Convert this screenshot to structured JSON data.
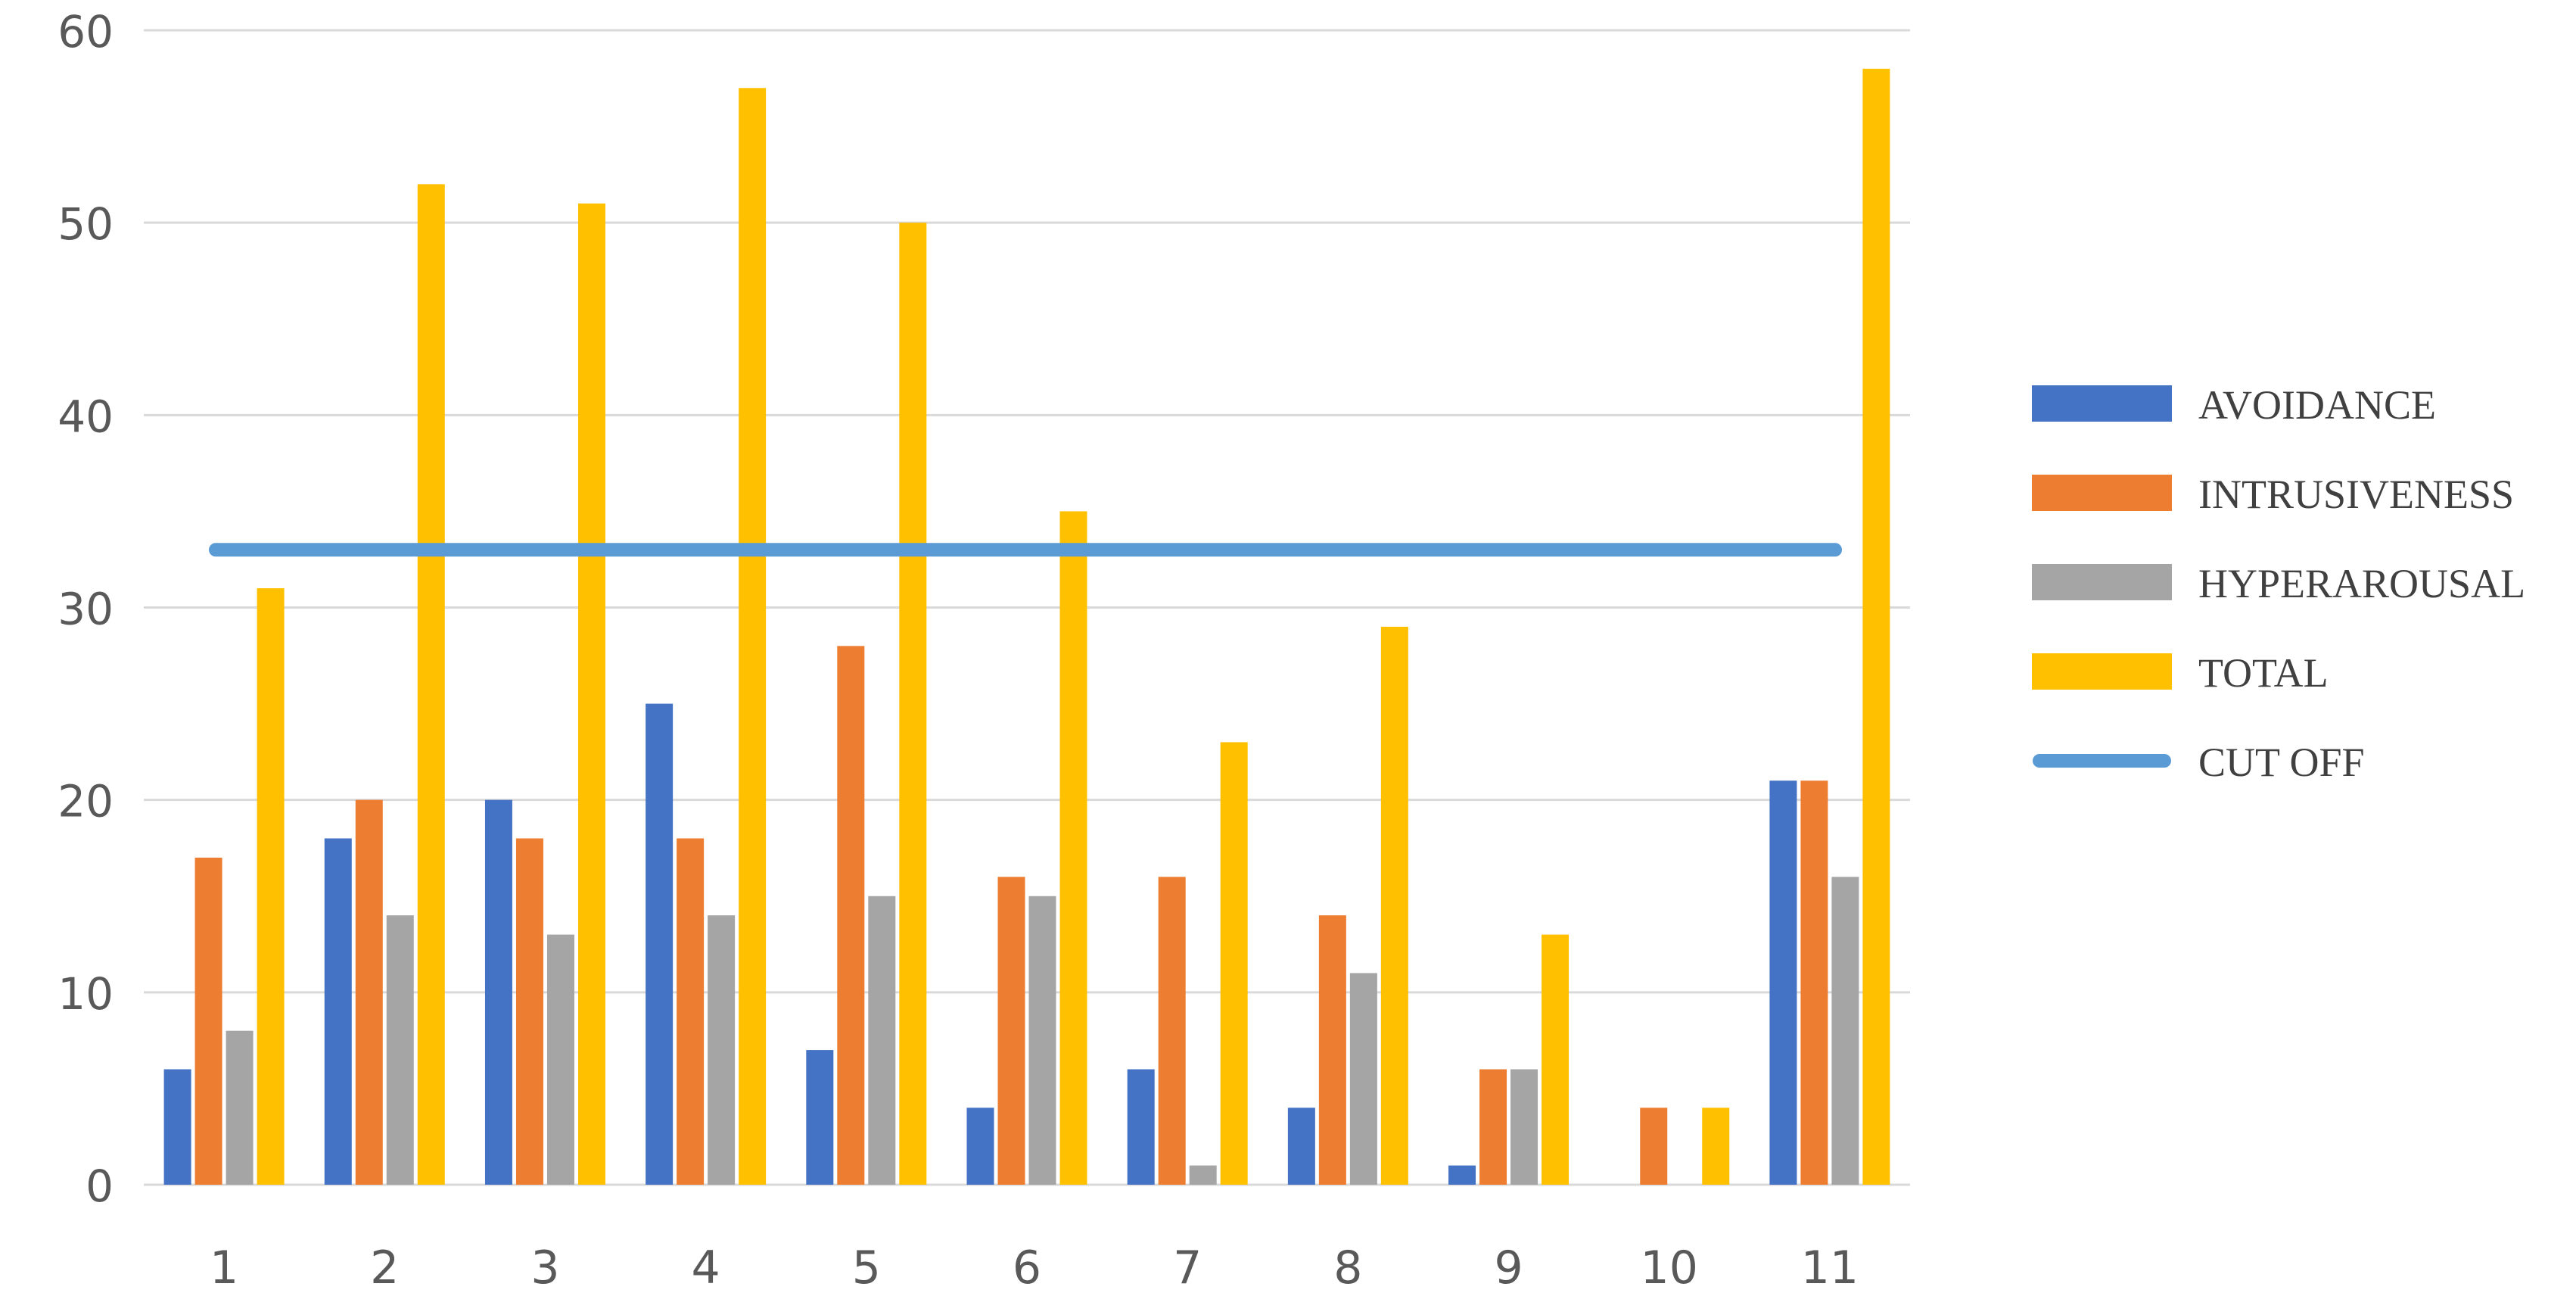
{
  "chart_data": {
    "type": "bar",
    "categories": [
      "1",
      "2",
      "3",
      "4",
      "5",
      "6",
      "7",
      "8",
      "9",
      "10",
      "11"
    ],
    "series": [
      {
        "name": "AVOIDANCE",
        "color": "#4472C4",
        "values": [
          6,
          18,
          20,
          25,
          7,
          4,
          6,
          4,
          1,
          0,
          21
        ]
      },
      {
        "name": "INTRUSIVENESS",
        "color": "#ED7D31",
        "values": [
          17,
          20,
          18,
          18,
          28,
          16,
          16,
          14,
          6,
          4,
          21
        ]
      },
      {
        "name": "HYPERAROUSAL",
        "color": "#A5A5A5",
        "values": [
          8,
          14,
          13,
          14,
          15,
          15,
          1,
          11,
          6,
          0,
          16
        ]
      },
      {
        "name": "TOTAL",
        "color": "#FFC000",
        "values": [
          31,
          52,
          51,
          57,
          50,
          35,
          23,
          29,
          13,
          4,
          58
        ]
      }
    ],
    "reference_line": {
      "name": "CUT OFF",
      "color": "#5B9BD5",
      "value": 33
    },
    "ylim": [
      0,
      60
    ],
    "yticks": [
      "0",
      "10",
      "20",
      "30",
      "40",
      "50",
      "60"
    ],
    "grid": true,
    "legend": "right",
    "title": "",
    "xlabel": "",
    "ylabel": ""
  }
}
